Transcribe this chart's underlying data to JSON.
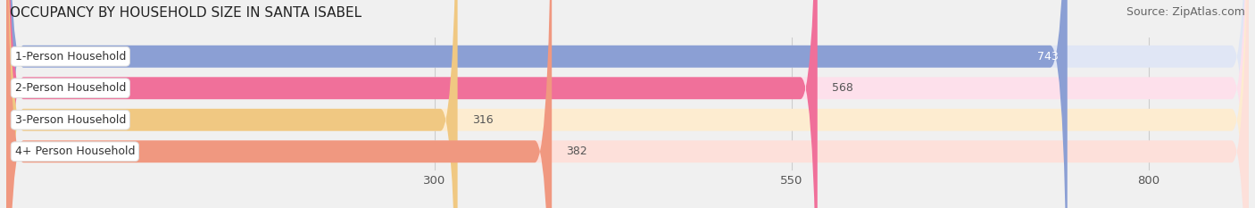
{
  "title": "OCCUPANCY BY HOUSEHOLD SIZE IN SANTA ISABEL",
  "source": "Source: ZipAtlas.com",
  "categories": [
    "1-Person Household",
    "2-Person Household",
    "3-Person Household",
    "4+ Person Household"
  ],
  "values": [
    743,
    568,
    316,
    382
  ],
  "bar_colors": [
    "#8b9fd4",
    "#f0709a",
    "#f0c882",
    "#f09880"
  ],
  "bar_bg_colors": [
    "#e0e6f5",
    "#fde0eb",
    "#fdecd0",
    "#fde0da"
  ],
  "label_inside": [
    true,
    false,
    false,
    false
  ],
  "value_label_colors": [
    "#ffffff",
    "#666666",
    "#666666",
    "#666666"
  ],
  "x_ticks": [
    300,
    550,
    800
  ],
  "xlim": [
    0,
    870
  ],
  "ylim": [
    -0.6,
    3.6
  ],
  "bar_height": 0.7,
  "title_fontsize": 11,
  "source_fontsize": 9,
  "tick_fontsize": 9.5,
  "bar_label_fontsize": 9,
  "category_fontsize": 9,
  "rounding_size": 12,
  "bg_color": "#f0f0f0"
}
